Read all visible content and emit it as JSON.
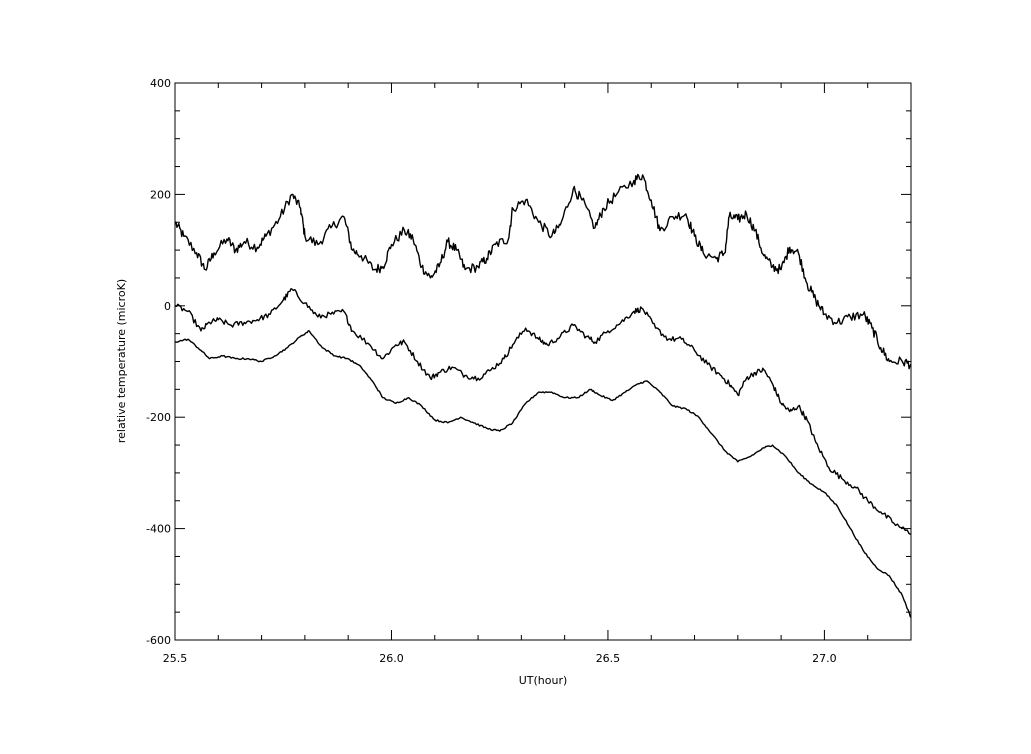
{
  "chart_data": {
    "type": "line",
    "title": "",
    "xlabel": "UT(hour)",
    "ylabel": "relative temperature (microK)",
    "xlim": [
      25.5,
      27.2
    ],
    "ylim": [
      -600,
      400
    ],
    "x_ticks": [
      25.5,
      26.0,
      26.5,
      27.0
    ],
    "x_tick_labels": [
      "25.5",
      "26.0",
      "26.5",
      "27.0"
    ],
    "y_ticks": [
      -600,
      -400,
      -200,
      0,
      200,
      400
    ],
    "y_tick_labels": [
      "-600",
      "-400",
      "-200",
      "0",
      "200",
      "400"
    ],
    "grid": false,
    "legend": "none",
    "color": "#000000",
    "series": [
      {
        "points": [
          [
            25.5,
            150
          ],
          [
            25.52,
            125
          ],
          [
            25.55,
            95
          ],
          [
            25.57,
            65
          ],
          [
            25.59,
            95
          ],
          [
            25.62,
            120
          ],
          [
            25.64,
            100
          ],
          [
            25.66,
            115
          ],
          [
            25.69,
            105
          ],
          [
            25.71,
            125
          ],
          [
            25.74,
            155
          ],
          [
            25.77,
            200
          ],
          [
            25.79,
            175
          ],
          [
            25.8,
            125
          ],
          [
            25.83,
            110
          ],
          [
            25.86,
            140
          ],
          [
            25.89,
            160
          ],
          [
            25.91,
            100
          ],
          [
            25.93,
            90
          ],
          [
            25.96,
            65
          ],
          [
            25.98,
            70
          ],
          [
            26.0,
            110
          ],
          [
            26.03,
            135
          ],
          [
            26.05,
            120
          ],
          [
            26.07,
            70
          ],
          [
            26.09,
            50
          ],
          [
            26.11,
            70
          ],
          [
            26.13,
            115
          ],
          [
            26.15,
            100
          ],
          [
            26.17,
            65
          ],
          [
            26.2,
            70
          ],
          [
            26.22,
            85
          ],
          [
            26.24,
            110
          ],
          [
            26.27,
            120
          ],
          [
            26.28,
            175
          ],
          [
            26.31,
            190
          ],
          [
            26.34,
            150
          ],
          [
            26.37,
            125
          ],
          [
            26.39,
            145
          ],
          [
            26.42,
            210
          ],
          [
            26.44,
            190
          ],
          [
            26.47,
            140
          ],
          [
            26.49,
            175
          ],
          [
            26.52,
            200
          ],
          [
            26.56,
            225
          ],
          [
            26.58,
            235
          ],
          [
            26.6,
            190
          ],
          [
            26.62,
            135
          ],
          [
            26.65,
            160
          ],
          [
            26.68,
            165
          ],
          [
            26.7,
            125
          ],
          [
            26.72,
            95
          ],
          [
            26.75,
            85
          ],
          [
            26.77,
            95
          ],
          [
            26.78,
            160
          ],
          [
            26.8,
            155
          ],
          [
            26.82,
            165
          ],
          [
            26.84,
            135
          ],
          [
            26.86,
            90
          ],
          [
            26.88,
            70
          ],
          [
            26.9,
            65
          ],
          [
            26.92,
            105
          ],
          [
            26.94,
            95
          ],
          [
            26.96,
            40
          ],
          [
            26.98,
            10
          ],
          [
            27.0,
            -15
          ],
          [
            27.03,
            -30
          ],
          [
            27.06,
            -20
          ],
          [
            27.09,
            -15
          ],
          [
            27.11,
            -40
          ],
          [
            27.13,
            -75
          ],
          [
            27.15,
            -100
          ],
          [
            27.18,
            -100
          ],
          [
            27.2,
            -105
          ]
        ]
      },
      {
        "points": [
          [
            25.5,
            0
          ],
          [
            25.53,
            -10
          ],
          [
            25.56,
            -45
          ],
          [
            25.58,
            -30
          ],
          [
            25.6,
            -25
          ],
          [
            25.63,
            -35
          ],
          [
            25.66,
            -30
          ],
          [
            25.69,
            -25
          ],
          [
            25.72,
            -15
          ],
          [
            25.75,
            10
          ],
          [
            25.77,
            30
          ],
          [
            25.8,
            5
          ],
          [
            25.83,
            -20
          ],
          [
            25.86,
            -15
          ],
          [
            25.89,
            -10
          ],
          [
            25.91,
            -45
          ],
          [
            25.95,
            -70
          ],
          [
            25.98,
            -95
          ],
          [
            26.01,
            -70
          ],
          [
            26.03,
            -65
          ],
          [
            26.06,
            -100
          ],
          [
            26.09,
            -130
          ],
          [
            26.11,
            -120
          ],
          [
            26.14,
            -110
          ],
          [
            26.17,
            -125
          ],
          [
            26.2,
            -130
          ],
          [
            26.23,
            -115
          ],
          [
            26.26,
            -95
          ],
          [
            26.28,
            -70
          ],
          [
            26.31,
            -40
          ],
          [
            26.34,
            -60
          ],
          [
            26.36,
            -70
          ],
          [
            26.39,
            -55
          ],
          [
            26.42,
            -35
          ],
          [
            26.45,
            -55
          ],
          [
            26.47,
            -65
          ],
          [
            26.5,
            -45
          ],
          [
            26.53,
            -30
          ],
          [
            26.56,
            -10
          ],
          [
            26.58,
            -5
          ],
          [
            26.61,
            -40
          ],
          [
            26.64,
            -60
          ],
          [
            26.67,
            -60
          ],
          [
            26.7,
            -80
          ],
          [
            26.73,
            -105
          ],
          [
            26.76,
            -125
          ],
          [
            26.78,
            -140
          ],
          [
            26.8,
            -160
          ],
          [
            26.82,
            -130
          ],
          [
            26.84,
            -120
          ],
          [
            26.86,
            -115
          ],
          [
            26.88,
            -140
          ],
          [
            26.9,
            -175
          ],
          [
            26.92,
            -190
          ],
          [
            26.94,
            -180
          ],
          [
            26.96,
            -205
          ],
          [
            26.98,
            -245
          ],
          [
            27.01,
            -290
          ],
          [
            27.04,
            -310
          ],
          [
            27.07,
            -325
          ],
          [
            27.1,
            -350
          ],
          [
            27.13,
            -370
          ],
          [
            27.16,
            -390
          ],
          [
            27.2,
            -410
          ]
        ]
      },
      {
        "points": [
          [
            25.5,
            -65
          ],
          [
            25.53,
            -60
          ],
          [
            25.56,
            -80
          ],
          [
            25.58,
            -95
          ],
          [
            25.61,
            -90
          ],
          [
            25.64,
            -95
          ],
          [
            25.67,
            -95
          ],
          [
            25.7,
            -100
          ],
          [
            25.73,
            -90
          ],
          [
            25.76,
            -75
          ],
          [
            25.79,
            -55
          ],
          [
            25.81,
            -45
          ],
          [
            25.84,
            -75
          ],
          [
            25.87,
            -90
          ],
          [
            25.9,
            -95
          ],
          [
            25.93,
            -110
          ],
          [
            25.96,
            -140
          ],
          [
            25.98,
            -165
          ],
          [
            26.01,
            -175
          ],
          [
            26.04,
            -165
          ],
          [
            26.07,
            -180
          ],
          [
            26.1,
            -205
          ],
          [
            26.13,
            -210
          ],
          [
            26.16,
            -200
          ],
          [
            26.19,
            -210
          ],
          [
            26.22,
            -220
          ],
          [
            26.25,
            -225
          ],
          [
            26.28,
            -210
          ],
          [
            26.31,
            -175
          ],
          [
            26.34,
            -155
          ],
          [
            26.37,
            -155
          ],
          [
            26.4,
            -165
          ],
          [
            26.43,
            -165
          ],
          [
            26.46,
            -150
          ],
          [
            26.48,
            -160
          ],
          [
            26.51,
            -170
          ],
          [
            26.54,
            -155
          ],
          [
            26.57,
            -140
          ],
          [
            26.59,
            -135
          ],
          [
            26.62,
            -155
          ],
          [
            26.65,
            -180
          ],
          [
            26.68,
            -185
          ],
          [
            26.71,
            -200
          ],
          [
            26.74,
            -230
          ],
          [
            26.77,
            -260
          ],
          [
            26.8,
            -280
          ],
          [
            26.83,
            -270
          ],
          [
            26.86,
            -255
          ],
          [
            26.88,
            -250
          ],
          [
            26.91,
            -270
          ],
          [
            26.94,
            -300
          ],
          [
            26.97,
            -320
          ],
          [
            27.0,
            -335
          ],
          [
            27.03,
            -360
          ],
          [
            27.06,
            -400
          ],
          [
            27.09,
            -440
          ],
          [
            27.12,
            -470
          ],
          [
            27.15,
            -485
          ],
          [
            27.18,
            -520
          ],
          [
            27.2,
            -560
          ]
        ]
      }
    ]
  }
}
